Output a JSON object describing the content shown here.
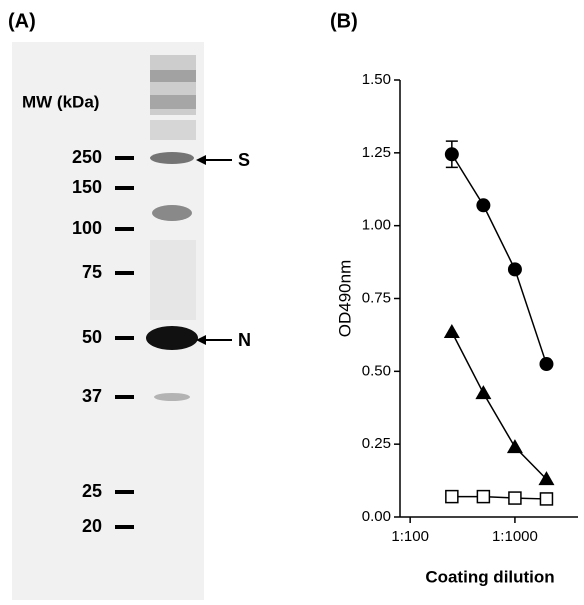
{
  "panel_a": {
    "label": "(A)",
    "mw_label": "MW (kDa)",
    "markers": [
      "250",
      "150",
      "100",
      "75",
      "50",
      "37",
      "25",
      "20"
    ],
    "bands": [
      "S",
      "N"
    ]
  },
  "chart_data": {
    "type": "line",
    "panel_label": "(B)",
    "x_label": "Coating dilution",
    "y_label": "OD490nm",
    "x": [
      250,
      500,
      1000,
      2000
    ],
    "log_x": true,
    "xlim": [
      80,
      4000
    ],
    "xticks": [
      {
        "value": 100,
        "label": "1:100"
      },
      {
        "value": 1000,
        "label": "1:1000"
      }
    ],
    "ylim": [
      0,
      1.5
    ],
    "yticks": [
      {
        "value": 0,
        "label": "0.00"
      },
      {
        "value": 0.25,
        "label": "0.25"
      },
      {
        "value": 0.5,
        "label": "0.50"
      },
      {
        "value": 0.75,
        "label": "0.75"
      },
      {
        "value": 1,
        "label": "1.00"
      },
      {
        "value": 1.25,
        "label": "1.25"
      },
      {
        "value": 1.5,
        "label": "1.50"
      }
    ],
    "series": [
      {
        "marker": "circle",
        "color": "#000000",
        "values": [
          1.245,
          1.07,
          0.85,
          0.525
        ],
        "errors": [
          0.045,
          null,
          null,
          null
        ]
      },
      {
        "marker": "triangle",
        "color": "#000000",
        "values": [
          0.635,
          0.425,
          0.24,
          0.13
        ]
      },
      {
        "marker": "square-open",
        "color": "#000000",
        "values": [
          0.07,
          0.07,
          0.065,
          0.062
        ]
      }
    ]
  }
}
